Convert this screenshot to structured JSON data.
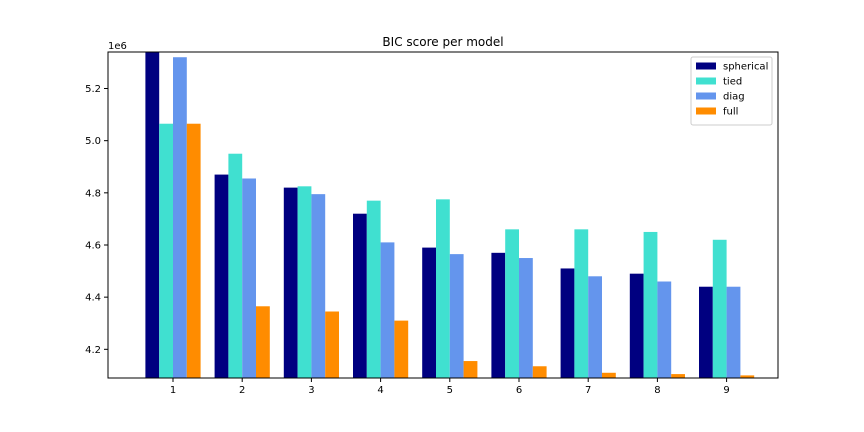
{
  "chart_data": {
    "type": "bar",
    "title": "BIC score per model",
    "scale_label": "1e6",
    "xlabel": "",
    "ylabel": "",
    "categories": [
      "1",
      "2",
      "3",
      "4",
      "5",
      "6",
      "7",
      "8",
      "9"
    ],
    "ylim": [
      4.09,
      5.34
    ],
    "yticks": [
      4.2,
      4.4,
      4.6,
      4.8,
      5.0,
      5.2
    ],
    "ytick_labels": [
      "4.2",
      "4.4",
      "4.6",
      "4.8",
      "5.0",
      "5.2"
    ],
    "series": [
      {
        "name": "spherical",
        "color": "#000080",
        "values": [
          5.34,
          4.87,
          4.82,
          4.72,
          4.59,
          4.57,
          4.51,
          4.49,
          4.44
        ]
      },
      {
        "name": "tied",
        "color": "#40e0d0",
        "values": [
          5.065,
          4.95,
          4.825,
          4.77,
          4.775,
          4.66,
          4.66,
          4.65,
          4.62
        ]
      },
      {
        "name": "diag",
        "color": "#6495ed",
        "values": [
          5.32,
          4.855,
          4.795,
          4.61,
          4.565,
          4.55,
          4.48,
          4.46,
          4.44
        ]
      },
      {
        "name": "full",
        "color": "#ff8c00",
        "values": [
          5.065,
          4.365,
          4.345,
          4.31,
          4.155,
          4.135,
          4.11,
          4.105,
          4.1
        ]
      }
    ],
    "legend_position": "top-right",
    "grid": false
  }
}
